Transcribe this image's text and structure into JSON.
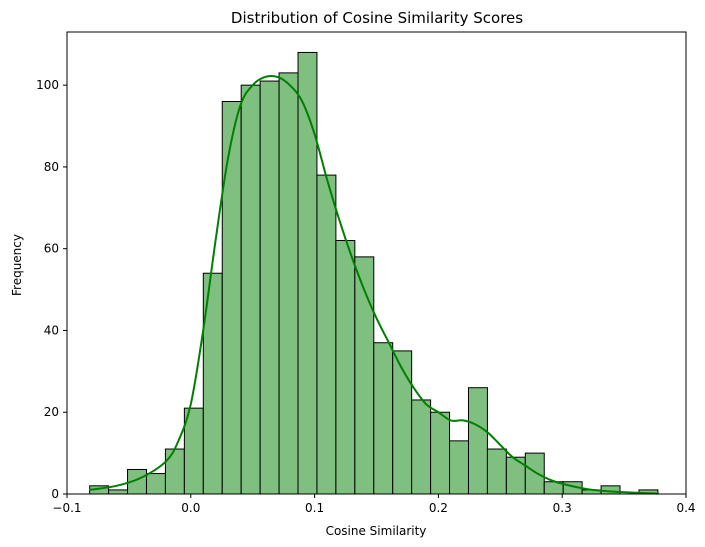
{
  "chart_data": {
    "type": "bar",
    "title": "Distribution of Cosine Similarity Scores",
    "xlabel": "Cosine Similarity",
    "ylabel": "Frequency",
    "xlim": [
      -0.1,
      0.4
    ],
    "ylim": [
      0,
      113
    ],
    "x_ticks": [
      -0.1,
      0.0,
      0.1,
      0.2,
      0.3,
      0.4
    ],
    "x_tick_labels": [
      "−0.1",
      "0.0",
      "0.1",
      "0.2",
      "0.3",
      "0.4"
    ],
    "y_ticks": [
      0,
      20,
      40,
      60,
      80,
      100
    ],
    "y_tick_labels": [
      "0",
      "20",
      "40",
      "60",
      "80",
      "100"
    ],
    "grid": false,
    "bin_edges": [
      -0.0817,
      -0.0664,
      -0.0511,
      -0.0358,
      -0.0205,
      -0.0052,
      0.0101,
      0.0254,
      0.0407,
      0.056,
      0.0713,
      0.0866,
      0.1019,
      0.1172,
      0.1325,
      0.1478,
      0.1631,
      0.1784,
      0.1937,
      0.209,
      0.2243,
      0.2396,
      0.2549,
      0.2702,
      0.2855,
      0.3008,
      0.3161,
      0.3314,
      0.3467,
      0.362,
      0.3773
    ],
    "values": [
      2,
      1,
      6,
      5,
      11,
      21,
      54,
      96,
      100,
      101,
      103,
      108,
      78,
      62,
      58,
      37,
      35,
      23,
      20,
      13,
      26,
      11,
      9,
      10,
      3,
      3,
      1,
      2,
      0,
      1
    ],
    "kde": {
      "x": [
        -0.082,
        -0.06,
        -0.04,
        -0.02,
        -0.01,
        0.0,
        0.01,
        0.02,
        0.03,
        0.04,
        0.05,
        0.06,
        0.07,
        0.08,
        0.09,
        0.1,
        0.11,
        0.12,
        0.13,
        0.14,
        0.15,
        0.16,
        0.17,
        0.18,
        0.19,
        0.2,
        0.21,
        0.22,
        0.23,
        0.24,
        0.25,
        0.26,
        0.27,
        0.28,
        0.29,
        0.3,
        0.32,
        0.34,
        0.36,
        0.378
      ],
      "y": [
        1,
        2,
        4,
        8,
        13,
        22,
        40,
        62,
        82,
        95,
        100,
        102,
        102,
        100,
        96,
        88,
        77,
        67,
        58,
        50,
        43,
        37,
        31,
        26,
        22,
        20,
        18,
        18,
        17,
        15,
        12,
        9,
        7,
        5,
        3.5,
        2.5,
        1.2,
        0.6,
        0.3,
        0.1
      ]
    },
    "colors": {
      "bar_fill": "#7fbf7f",
      "bar_edge": "#000000",
      "kde_line": "#008000"
    }
  }
}
